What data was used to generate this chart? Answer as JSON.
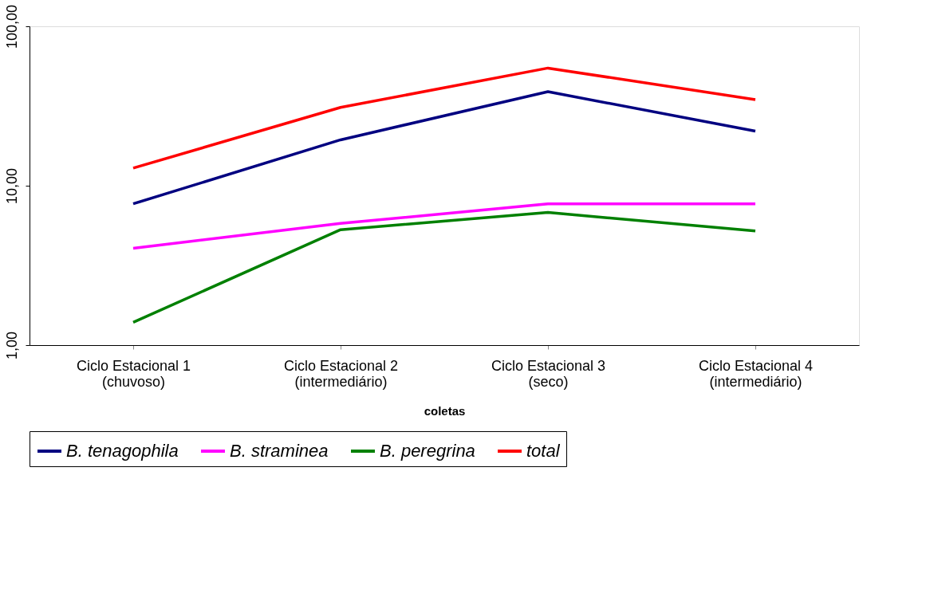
{
  "chart_data": {
    "type": "line",
    "xlabel": "coletas",
    "categories": [
      "Ciclo Estacional 1\n(chuvoso)",
      "Ciclo Estacional 2\n(intermediário)",
      "Ciclo Estacional 3\n(seco)",
      "Ciclo Estacional 4\n(intermediário)"
    ],
    "series": [
      {
        "name": "B. tenagophila",
        "color": "#000080",
        "values": [
          7.7,
          19.4,
          38.9,
          22.0
        ]
      },
      {
        "name": "B. straminea",
        "color": "#ff00ff",
        "values": [
          4.05,
          5.8,
          7.7,
          7.7
        ]
      },
      {
        "name": "B. peregrina",
        "color": "#008000",
        "values": [
          1.39,
          5.3,
          6.8,
          5.2
        ]
      },
      {
        "name": "total",
        "color": "#ff0000",
        "values": [
          12.9,
          31.0,
          54.7,
          34.7
        ]
      }
    ],
    "log": "y",
    "ylim": [
      1,
      100
    ],
    "yticks": [
      {
        "value": 1,
        "label": "1,00"
      },
      {
        "value": 10,
        "label": "10,00"
      },
      {
        "value": 100,
        "label": "100,00"
      }
    ],
    "grid": false,
    "legend": "bottom",
    "marker": "none",
    "line_style": "solid"
  }
}
